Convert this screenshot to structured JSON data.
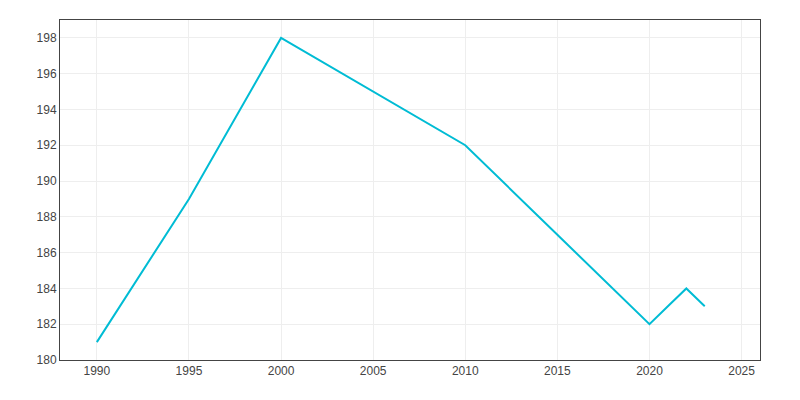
{
  "chart_data": {
    "type": "line",
    "x": [
      1990,
      1995,
      2000,
      2005,
      2010,
      2015,
      2020,
      2021,
      2022,
      2023
    ],
    "values": [
      181,
      189,
      198,
      195,
      192,
      187,
      182,
      183,
      184,
      183
    ],
    "color": "#00bcd4",
    "xlim": [
      1988,
      2026
    ],
    "xticks": [
      1990,
      1995,
      2000,
      2005,
      2010,
      2015,
      2020,
      2025
    ],
    "ylim": [
      180,
      199
    ],
    "yticks": [
      180,
      182,
      184,
      186,
      188,
      190,
      192,
      194,
      196,
      198
    ],
    "grid": true
  }
}
